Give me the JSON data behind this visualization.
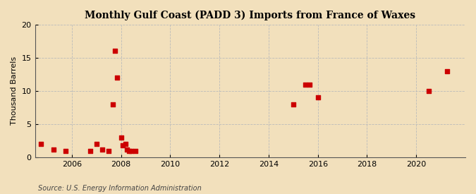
{
  "title": "Monthly Gulf Coast (PADD 3) Imports from France of Waxes",
  "ylabel": "Thousand Barrels",
  "source": "Source: U.S. Energy Information Administration",
  "background_color": "#f2e0bc",
  "plot_background_color": "#f2e0bc",
  "marker_color": "#cc0000",
  "marker": "s",
  "marker_size": 4,
  "xlim": [
    2004.5,
    2022.0
  ],
  "ylim": [
    0,
    20
  ],
  "yticks": [
    0,
    5,
    10,
    15,
    20
  ],
  "xticks": [
    2006,
    2008,
    2010,
    2012,
    2014,
    2016,
    2018,
    2020
  ],
  "data_points": [
    [
      2004.75,
      2.0
    ],
    [
      2005.25,
      1.2
    ],
    [
      2005.75,
      1.0
    ],
    [
      2006.75,
      1.0
    ],
    [
      2007.0,
      2.0
    ],
    [
      2007.25,
      1.2
    ],
    [
      2007.5,
      1.0
    ],
    [
      2007.67,
      8.0
    ],
    [
      2007.75,
      16.0
    ],
    [
      2007.83,
      12.0
    ],
    [
      2008.0,
      3.0
    ],
    [
      2008.08,
      1.8
    ],
    [
      2008.17,
      2.0
    ],
    [
      2008.25,
      1.2
    ],
    [
      2008.33,
      1.0
    ],
    [
      2008.42,
      1.0
    ],
    [
      2008.58,
      1.0
    ],
    [
      2015.0,
      8.0
    ],
    [
      2015.5,
      11.0
    ],
    [
      2015.67,
      11.0
    ],
    [
      2016.0,
      9.0
    ],
    [
      2020.5,
      10.0
    ],
    [
      2021.25,
      13.0
    ]
  ]
}
